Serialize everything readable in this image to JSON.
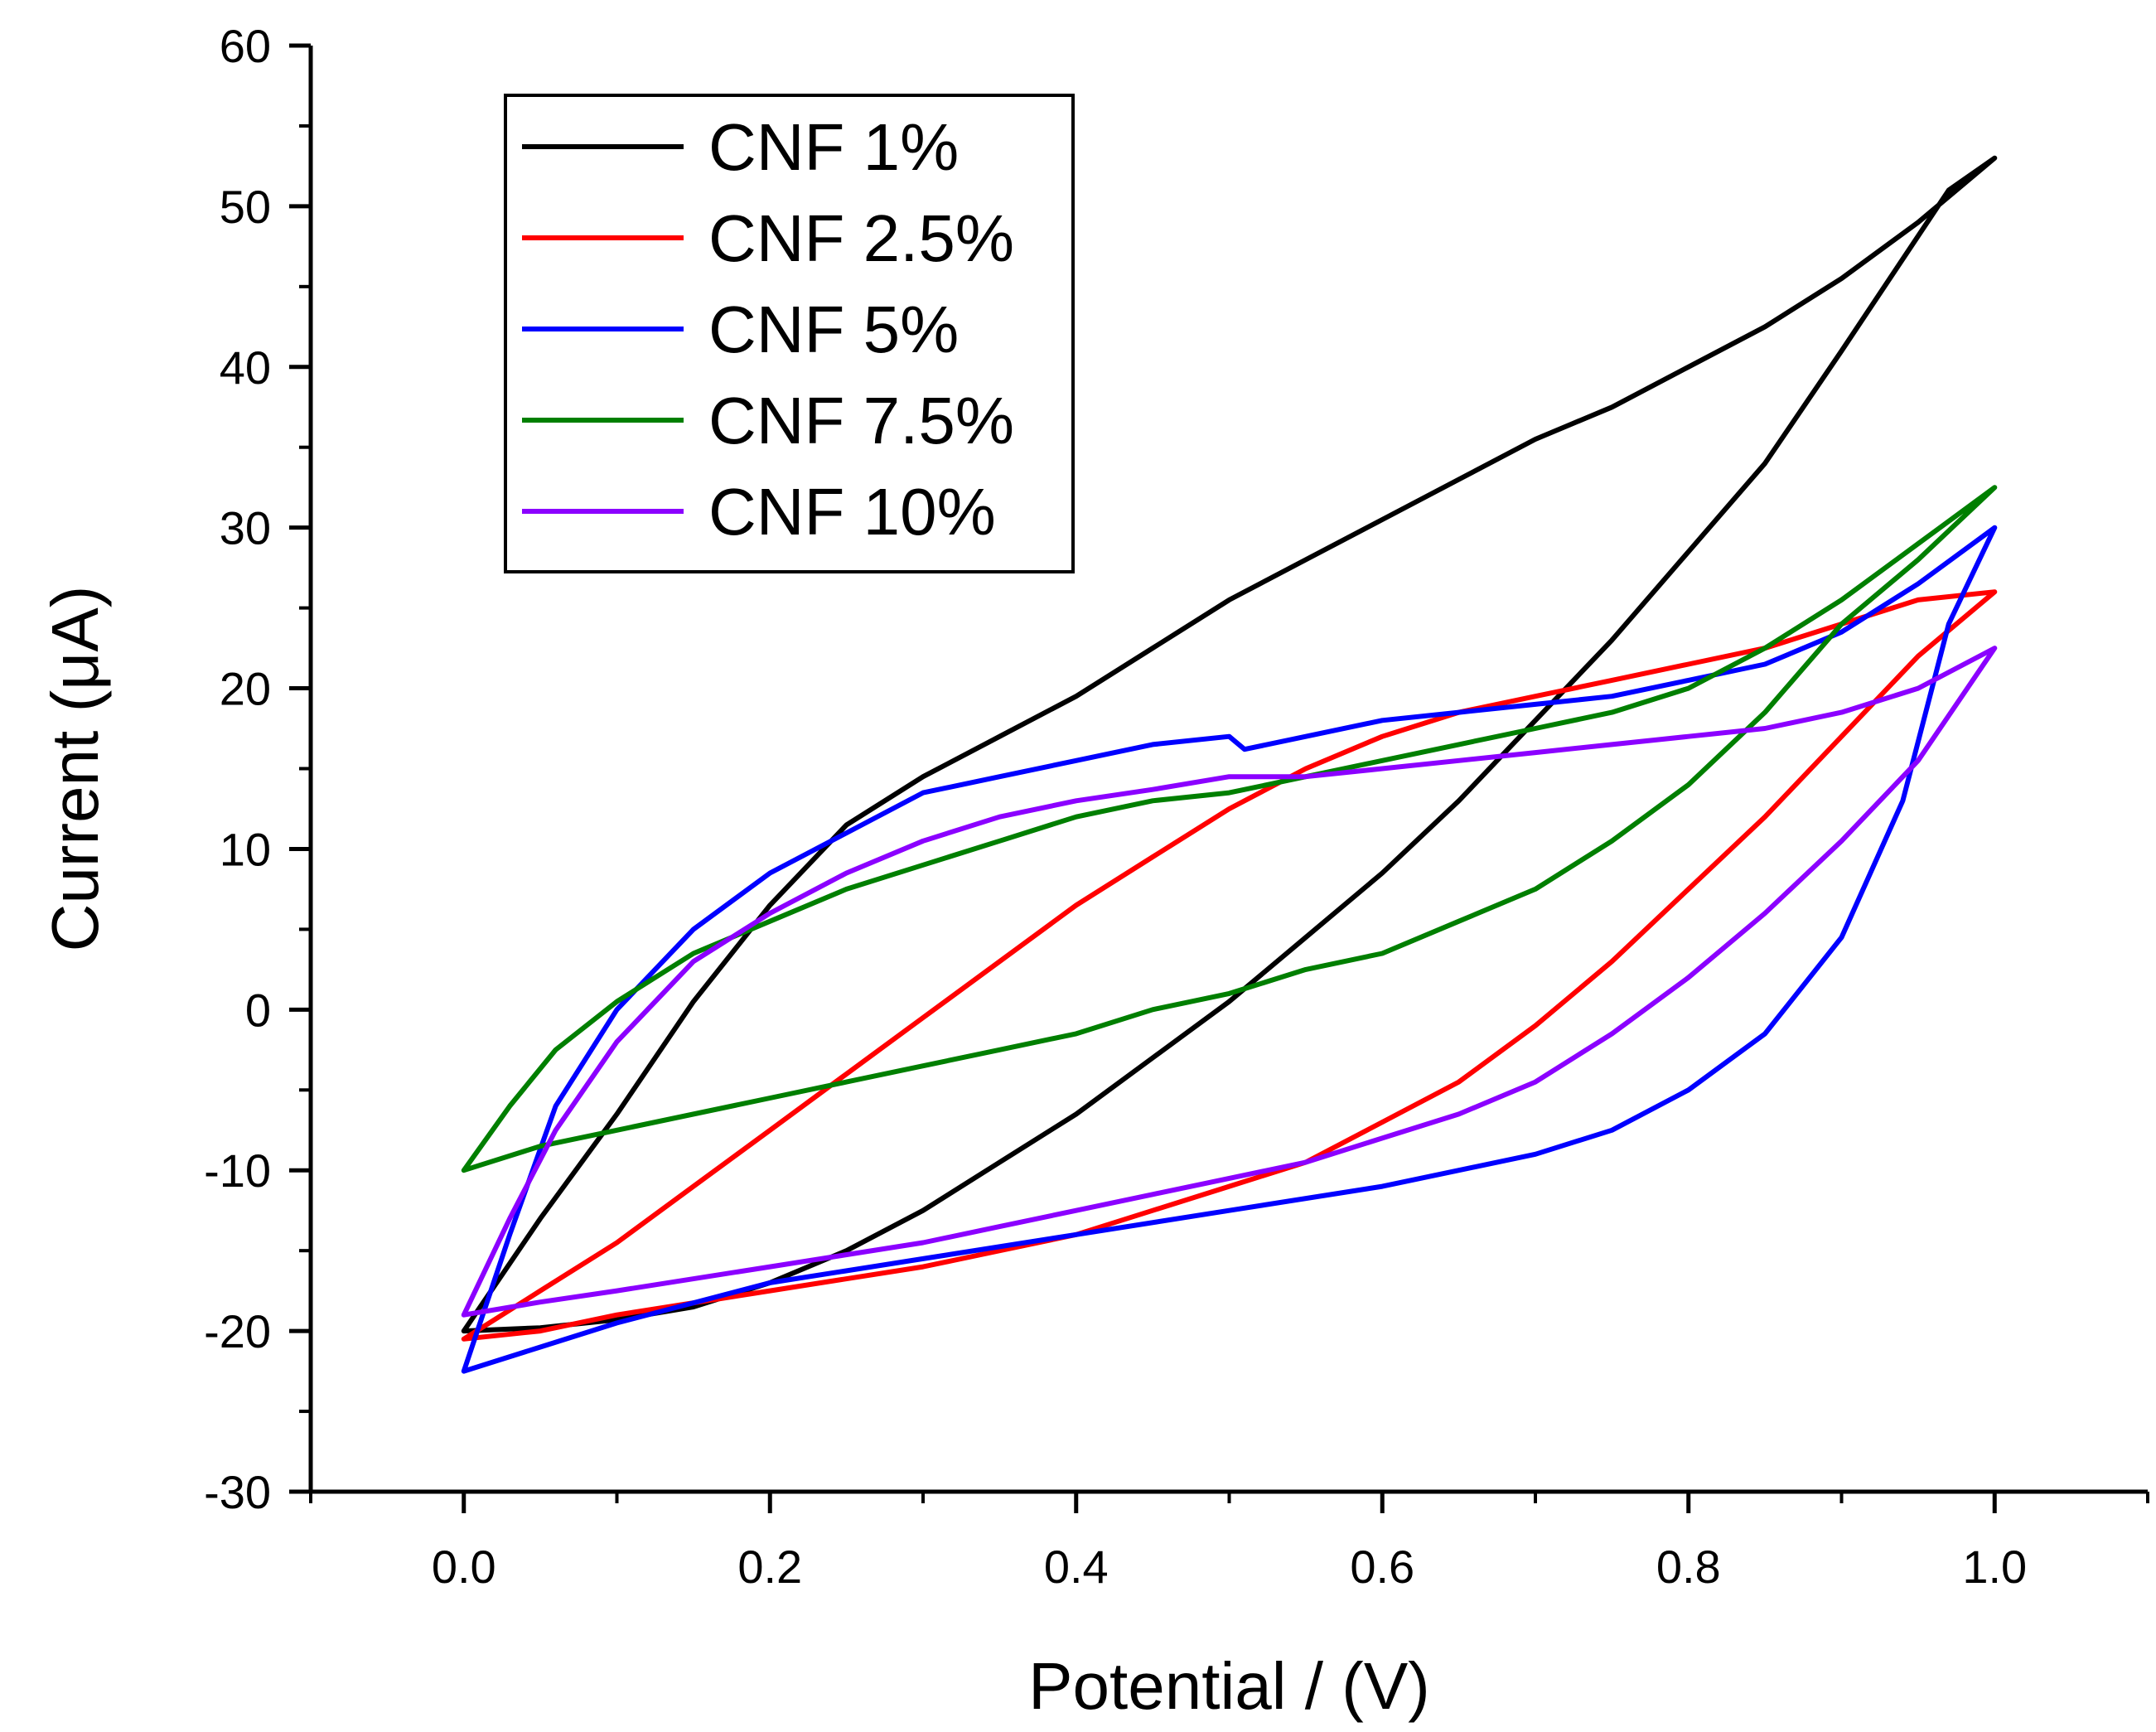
{
  "chart_data": {
    "type": "line",
    "title": "",
    "xlabel": "Potential / (V)",
    "ylabel": "Current (μA)",
    "xlim": [
      -0.1,
      1.1
    ],
    "ylim": [
      -30,
      60
    ],
    "xticks": [
      0.0,
      0.2,
      0.4,
      0.6,
      0.8,
      1.0
    ],
    "xtick_labels": [
      "0.0",
      "0.2",
      "0.4",
      "0.6",
      "0.8",
      "1.0"
    ],
    "yticks": [
      -30,
      -20,
      -10,
      0,
      10,
      20,
      30,
      40,
      50,
      60
    ],
    "ytick_labels": [
      "-30",
      "-20",
      "-10",
      "0",
      "10",
      "20",
      "30",
      "40",
      "50",
      "60"
    ],
    "grid": false,
    "legend_position": "top-left",
    "series": [
      {
        "name": "CNF 1%",
        "color": "#000000",
        "points": [
          [
            0.0,
            -20.0
          ],
          [
            0.05,
            -13.0
          ],
          [
            0.1,
            -6.5
          ],
          [
            0.15,
            0.5
          ],
          [
            0.2,
            6.5
          ],
          [
            0.25,
            11.5
          ],
          [
            0.3,
            14.5
          ],
          [
            0.35,
            17.0
          ],
          [
            0.4,
            19.5
          ],
          [
            0.45,
            22.5
          ],
          [
            0.5,
            25.5
          ],
          [
            0.55,
            28.0
          ],
          [
            0.6,
            30.5
          ],
          [
            0.65,
            33.0
          ],
          [
            0.7,
            35.5
          ],
          [
            0.75,
            37.5
          ],
          [
            0.8,
            40.0
          ],
          [
            0.85,
            42.5
          ],
          [
            0.9,
            45.5
          ],
          [
            0.95,
            49.0
          ],
          [
            1.0,
            53.0
          ],
          [
            0.97,
            51.0
          ],
          [
            0.9,
            41.0
          ],
          [
            0.85,
            34.0
          ],
          [
            0.8,
            28.5
          ],
          [
            0.75,
            23.0
          ],
          [
            0.7,
            18.0
          ],
          [
            0.65,
            13.0
          ],
          [
            0.6,
            8.5
          ],
          [
            0.55,
            4.5
          ],
          [
            0.5,
            0.5
          ],
          [
            0.45,
            -3.0
          ],
          [
            0.4,
            -6.5
          ],
          [
            0.35,
            -9.5
          ],
          [
            0.3,
            -12.5
          ],
          [
            0.25,
            -15.0
          ],
          [
            0.2,
            -17.0
          ],
          [
            0.15,
            -18.5
          ],
          [
            0.1,
            -19.3
          ],
          [
            0.05,
            -19.8
          ],
          [
            0.0,
            -20.0
          ]
        ]
      },
      {
        "name": "CNF 2.5%",
        "color": "#ff0000",
        "points": [
          [
            0.0,
            -20.5
          ],
          [
            0.05,
            -17.5
          ],
          [
            0.1,
            -14.5
          ],
          [
            0.15,
            -11.0
          ],
          [
            0.2,
            -7.5
          ],
          [
            0.25,
            -4.0
          ],
          [
            0.3,
            -0.5
          ],
          [
            0.35,
            3.0
          ],
          [
            0.4,
            6.5
          ],
          [
            0.45,
            9.5
          ],
          [
            0.5,
            12.5
          ],
          [
            0.55,
            15.0
          ],
          [
            0.6,
            17.0
          ],
          [
            0.65,
            18.5
          ],
          [
            0.7,
            19.5
          ],
          [
            0.75,
            20.5
          ],
          [
            0.8,
            21.5
          ],
          [
            0.85,
            22.5
          ],
          [
            0.9,
            24.0
          ],
          [
            0.95,
            25.5
          ],
          [
            1.0,
            26.0
          ],
          [
            0.95,
            22.0
          ],
          [
            0.9,
            17.0
          ],
          [
            0.85,
            12.0
          ],
          [
            0.8,
            7.5
          ],
          [
            0.75,
            3.0
          ],
          [
            0.7,
            -1.0
          ],
          [
            0.65,
            -4.5
          ],
          [
            0.6,
            -7.0
          ],
          [
            0.55,
            -9.5
          ],
          [
            0.5,
            -11.0
          ],
          [
            0.45,
            -12.5
          ],
          [
            0.4,
            -14.0
          ],
          [
            0.35,
            -15.0
          ],
          [
            0.3,
            -16.0
          ],
          [
            0.2,
            -17.5
          ],
          [
            0.1,
            -19.0
          ],
          [
            0.05,
            -20.0
          ],
          [
            0.0,
            -20.5
          ]
        ]
      },
      {
        "name": "CNF 5%",
        "color": "#0000ff",
        "points": [
          [
            0.0,
            -22.5
          ],
          [
            0.03,
            -14.0
          ],
          [
            0.06,
            -6.0
          ],
          [
            0.1,
            0.0
          ],
          [
            0.15,
            5.0
          ],
          [
            0.2,
            8.5
          ],
          [
            0.25,
            11.0
          ],
          [
            0.3,
            13.5
          ],
          [
            0.35,
            14.5
          ],
          [
            0.4,
            15.5
          ],
          [
            0.45,
            16.5
          ],
          [
            0.5,
            17.0
          ],
          [
            0.51,
            16.2
          ],
          [
            0.55,
            17.0
          ],
          [
            0.6,
            18.0
          ],
          [
            0.65,
            18.5
          ],
          [
            0.7,
            19.0
          ],
          [
            0.75,
            19.5
          ],
          [
            0.8,
            20.5
          ],
          [
            0.85,
            21.5
          ],
          [
            0.9,
            23.5
          ],
          [
            0.95,
            26.5
          ],
          [
            1.0,
            30.0
          ],
          [
            0.97,
            24.0
          ],
          [
            0.94,
            13.0
          ],
          [
            0.9,
            4.5
          ],
          [
            0.85,
            -1.5
          ],
          [
            0.8,
            -5.0
          ],
          [
            0.75,
            -7.5
          ],
          [
            0.7,
            -9.0
          ],
          [
            0.65,
            -10.0
          ],
          [
            0.6,
            -11.0
          ],
          [
            0.5,
            -12.5
          ],
          [
            0.4,
            -14.0
          ],
          [
            0.3,
            -15.5
          ],
          [
            0.2,
            -17.0
          ],
          [
            0.1,
            -19.5
          ],
          [
            0.05,
            -21.0
          ],
          [
            0.0,
            -22.5
          ]
        ]
      },
      {
        "name": "CNF 7.5%",
        "color": "#007f00",
        "points": [
          [
            0.0,
            -10.0
          ],
          [
            0.03,
            -6.0
          ],
          [
            0.06,
            -2.5
          ],
          [
            0.1,
            0.5
          ],
          [
            0.15,
            3.5
          ],
          [
            0.2,
            5.5
          ],
          [
            0.25,
            7.5
          ],
          [
            0.3,
            9.0
          ],
          [
            0.35,
            10.5
          ],
          [
            0.4,
            12.0
          ],
          [
            0.45,
            13.0
          ],
          [
            0.5,
            13.5
          ],
          [
            0.55,
            14.5
          ],
          [
            0.6,
            15.5
          ],
          [
            0.65,
            16.5
          ],
          [
            0.7,
            17.5
          ],
          [
            0.75,
            18.5
          ],
          [
            0.8,
            20.0
          ],
          [
            0.85,
            22.5
          ],
          [
            0.9,
            25.5
          ],
          [
            0.95,
            29.0
          ],
          [
            1.0,
            32.5
          ],
          [
            0.95,
            28.0
          ],
          [
            0.9,
            24.0
          ],
          [
            0.85,
            18.5
          ],
          [
            0.8,
            14.0
          ],
          [
            0.75,
            10.5
          ],
          [
            0.7,
            7.5
          ],
          [
            0.65,
            5.5
          ],
          [
            0.6,
            3.5
          ],
          [
            0.55,
            2.5
          ],
          [
            0.5,
            1.0
          ],
          [
            0.45,
            0.0
          ],
          [
            0.4,
            -1.5
          ],
          [
            0.35,
            -2.5
          ],
          [
            0.3,
            -3.5
          ],
          [
            0.25,
            -4.5
          ],
          [
            0.2,
            -5.5
          ],
          [
            0.1,
            -7.5
          ],
          [
            0.05,
            -8.5
          ],
          [
            0.0,
            -10.0
          ]
        ]
      },
      {
        "name": "CNF 10%",
        "color": "#8b00ff",
        "points": [
          [
            0.0,
            -19.0
          ],
          [
            0.03,
            -13.0
          ],
          [
            0.06,
            -7.5
          ],
          [
            0.1,
            -2.0
          ],
          [
            0.15,
            3.0
          ],
          [
            0.2,
            6.0
          ],
          [
            0.25,
            8.5
          ],
          [
            0.3,
            10.5
          ],
          [
            0.35,
            12.0
          ],
          [
            0.4,
            13.0
          ],
          [
            0.45,
            13.7
          ],
          [
            0.5,
            14.5
          ],
          [
            0.55,
            14.5
          ],
          [
            0.6,
            15.0
          ],
          [
            0.65,
            15.5
          ],
          [
            0.7,
            16.0
          ],
          [
            0.75,
            16.5
          ],
          [
            0.8,
            17.0
          ],
          [
            0.85,
            17.5
          ],
          [
            0.9,
            18.5
          ],
          [
            0.95,
            20.0
          ],
          [
            1.0,
            22.5
          ],
          [
            0.95,
            15.5
          ],
          [
            0.9,
            10.5
          ],
          [
            0.85,
            6.0
          ],
          [
            0.8,
            2.0
          ],
          [
            0.75,
            -1.5
          ],
          [
            0.7,
            -4.5
          ],
          [
            0.65,
            -6.5
          ],
          [
            0.6,
            -8.0
          ],
          [
            0.55,
            -9.5
          ],
          [
            0.5,
            -10.5
          ],
          [
            0.45,
            -11.5
          ],
          [
            0.4,
            -12.5
          ],
          [
            0.35,
            -13.5
          ],
          [
            0.3,
            -14.5
          ],
          [
            0.2,
            -16.0
          ],
          [
            0.1,
            -17.5
          ],
          [
            0.05,
            -18.2
          ],
          [
            0.0,
            -19.0
          ]
        ]
      }
    ]
  }
}
